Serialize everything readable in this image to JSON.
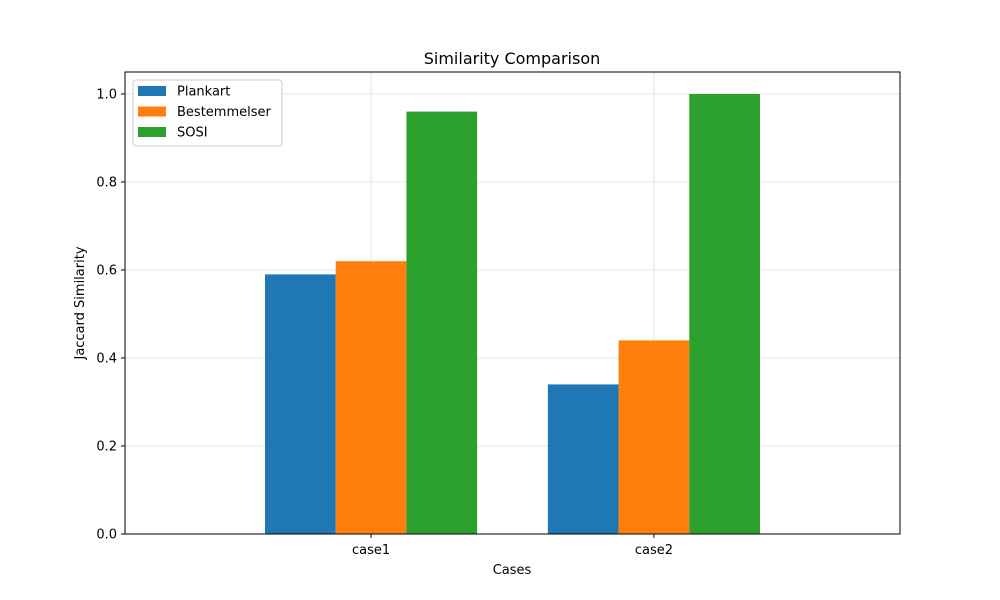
{
  "chart_data": {
    "type": "bar",
    "title": "Similarity Comparison",
    "xlabel": "Cases",
    "ylabel": "Jaccard Similarity",
    "categories": [
      "case1",
      "case2"
    ],
    "series": [
      {
        "name": "Plankart",
        "values": [
          0.59,
          0.34
        ],
        "color": "#1f77b4"
      },
      {
        "name": "Bestemmelser",
        "values": [
          0.62,
          0.44
        ],
        "color": "#ff7f0e"
      },
      {
        "name": "SOSI",
        "values": [
          0.96,
          1.0
        ],
        "color": "#2ca02c"
      }
    ],
    "ylim": [
      0,
      1.05
    ],
    "yticks": [
      "0.0",
      "0.2",
      "0.4",
      "0.6",
      "0.8",
      "1.0"
    ],
    "grid": true,
    "legend_position": "top-left"
  }
}
